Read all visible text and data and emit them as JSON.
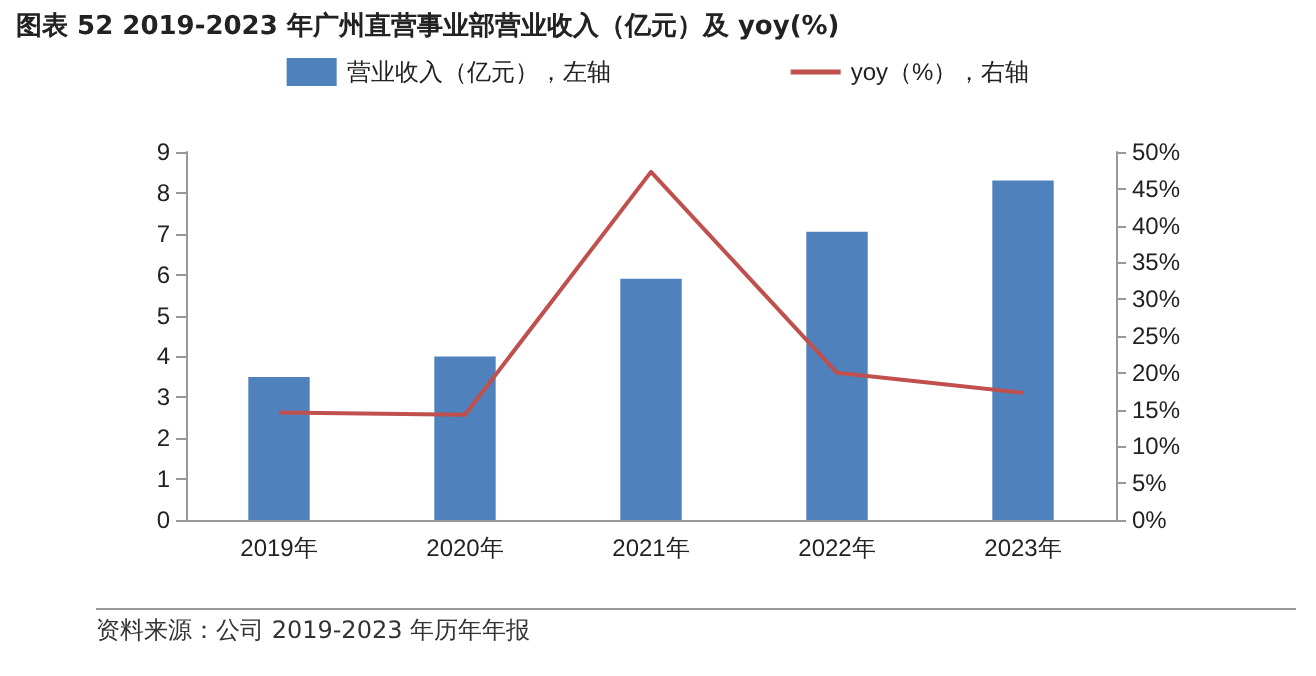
{
  "chart_data": {
    "type": "bar",
    "title": "图表 52 2019-2023 年广州直营事业部营业收入（亿元）及 yoy(%)",
    "categories": [
      "2019年",
      "2020年",
      "2021年",
      "2022年",
      "2023年"
    ],
    "series": [
      {
        "name": "营业收入（亿元），左轴",
        "color": "#4f81bd",
        "values": [
          3.5,
          4.0,
          5.9,
          7.05,
          8.3
        ]
      },
      {
        "name": "yoy（%），右轴",
        "type": "line",
        "axis": "y2",
        "color": "#c0504d",
        "marker": "none",
        "values": [
          14.6,
          14.3,
          47.3,
          20.0,
          17.3
        ]
      }
    ],
    "ylim": [
      0,
      9
    ],
    "yticks": [
      0,
      1,
      2,
      3,
      4,
      5,
      6,
      7,
      8,
      9
    ],
    "y2lim": [
      0,
      50
    ],
    "y2ticks": [
      {
        "value": 0,
        "label": "0%"
      },
      {
        "value": 5,
        "label": "5%"
      },
      {
        "value": 10,
        "label": "10%"
      },
      {
        "value": 15,
        "label": "15%"
      },
      {
        "value": 20,
        "label": "20%"
      },
      {
        "value": 25,
        "label": "25%"
      },
      {
        "value": 30,
        "label": "30%"
      },
      {
        "value": 35,
        "label": "35%"
      },
      {
        "value": 40,
        "label": "40%"
      },
      {
        "value": 45,
        "label": "45%"
      },
      {
        "value": 50,
        "label": "50%"
      }
    ],
    "grid": false,
    "legend": "top",
    "annotations": [
      "资料来源：公司 2019-2023 年历年年报"
    ]
  }
}
